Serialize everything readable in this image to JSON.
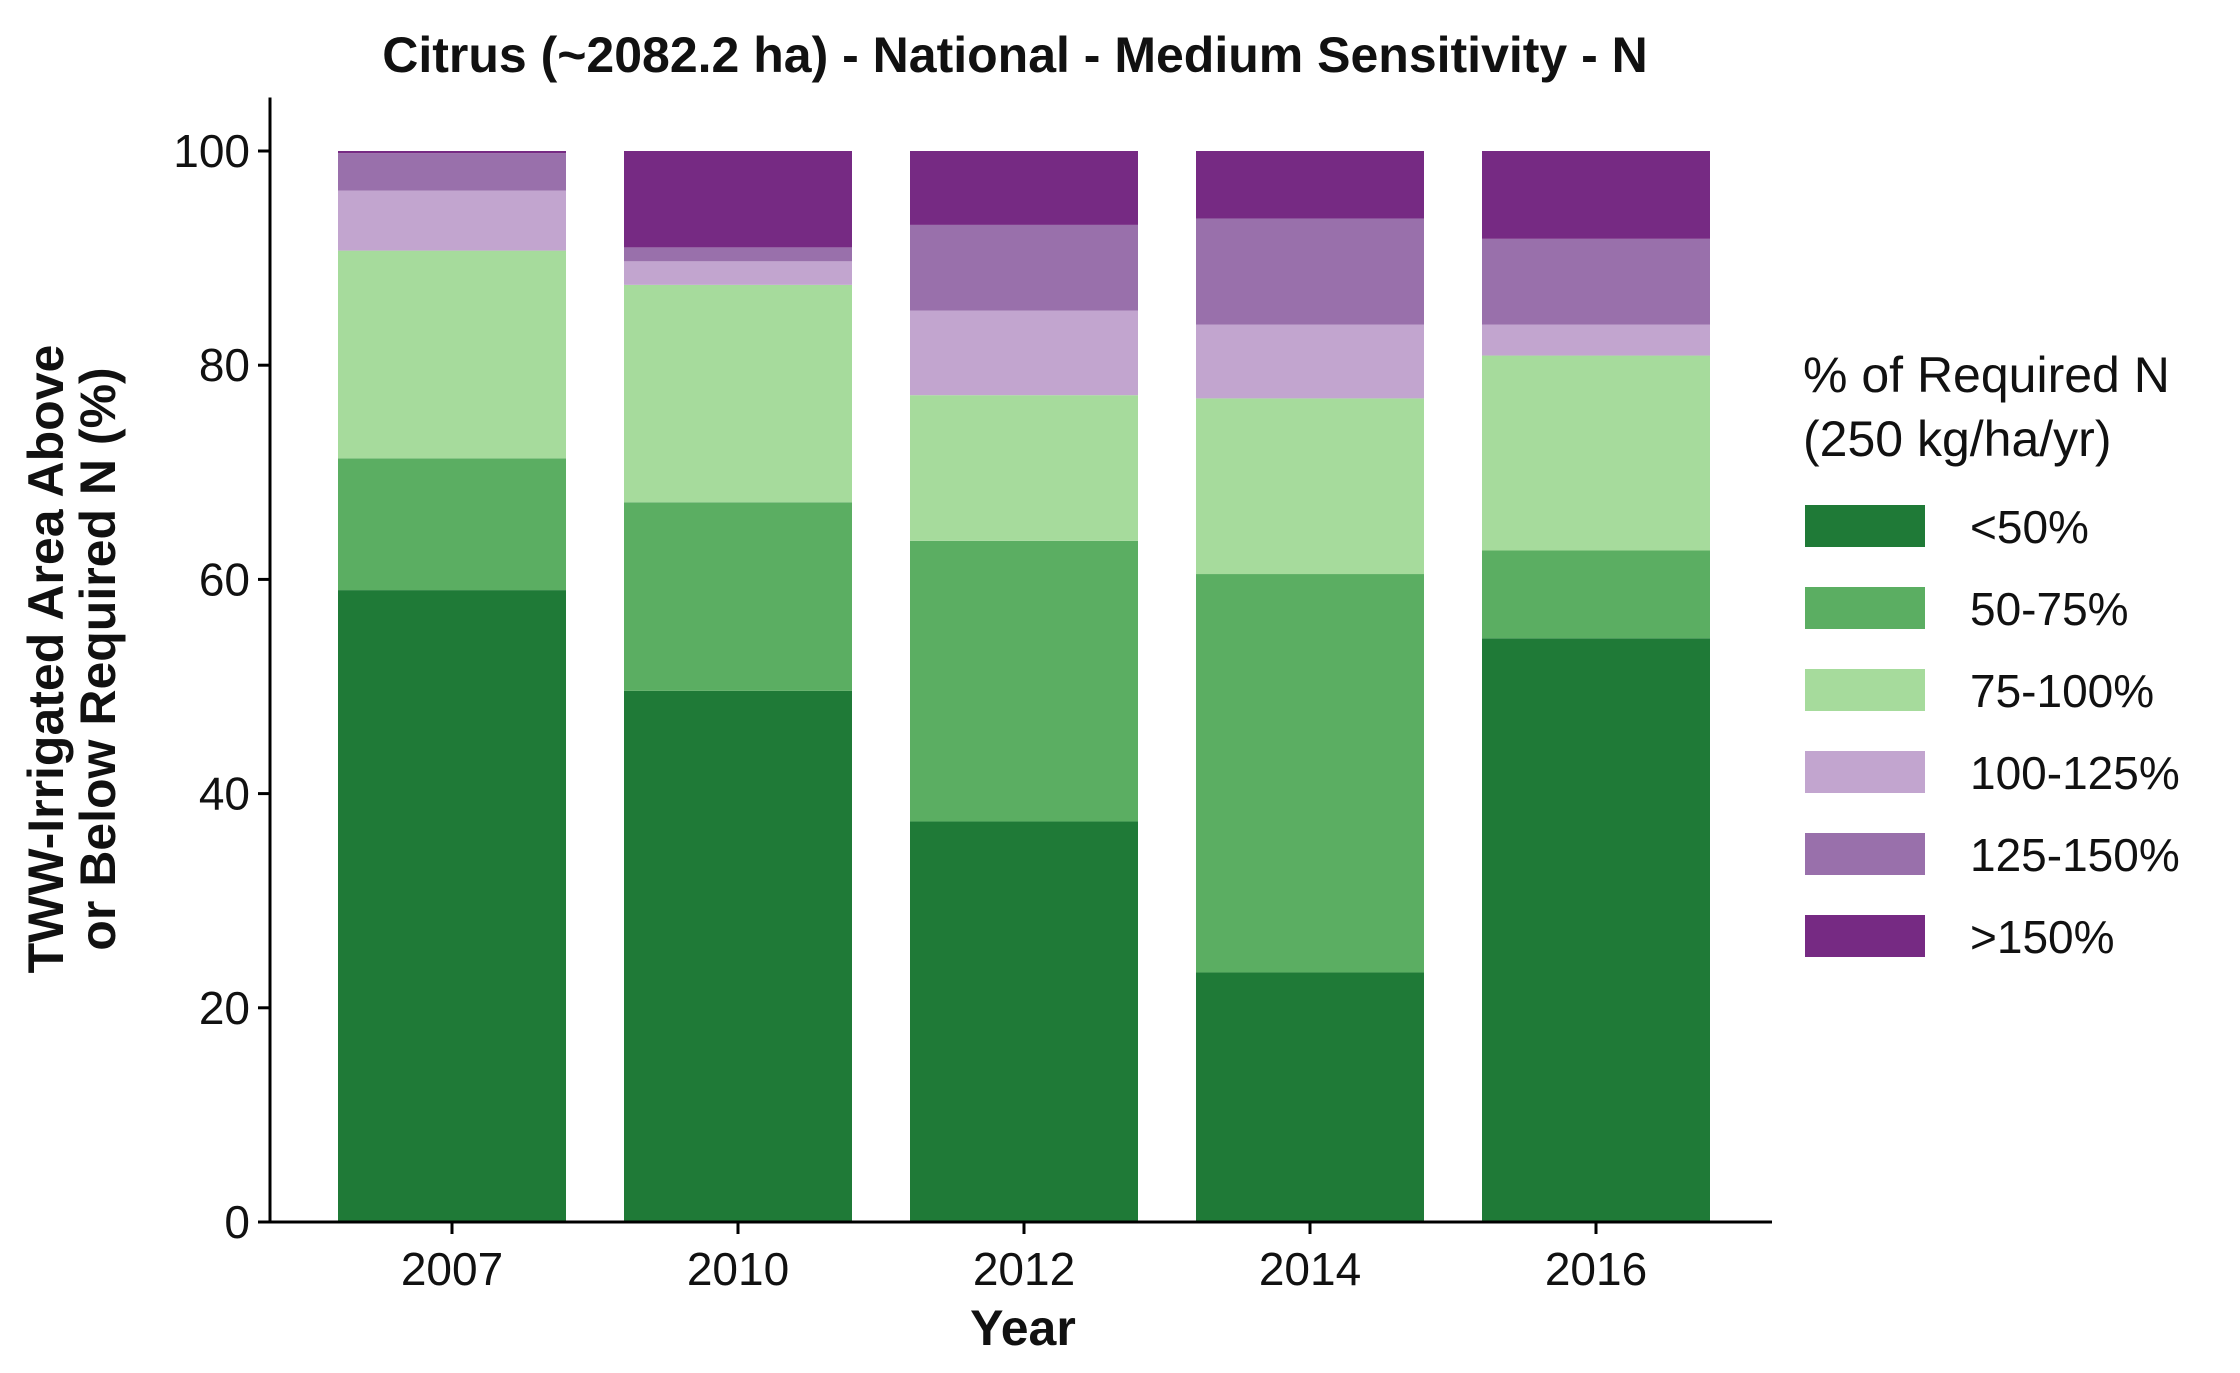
{
  "chart_data": {
    "type": "bar",
    "stacked": true,
    "title": "Citrus (~2082.2 ha) - National - Medium Sensitivity - N",
    "xlabel": "Year",
    "ylabel": [
      "TWW-Irrigated Area Above",
      "or Below Required N (%)"
    ],
    "ylim": [
      0,
      105
    ],
    "yticks": [
      0,
      20,
      40,
      60,
      80,
      100
    ],
    "grid": false,
    "categories": [
      "2007",
      "2010",
      "2012",
      "2014",
      "2016"
    ],
    "legend": {
      "title": [
        "% of Required N",
        "(250 kg/ha/yr)"
      ],
      "placement": "right"
    },
    "series": [
      {
        "name": "<50%",
        "color": "#1f7a37",
        "values": [
          59.0,
          49.6,
          37.4,
          23.3,
          54.5
        ]
      },
      {
        "name": "50-75%",
        "color": "#5bae62",
        "values": [
          12.3,
          17.6,
          26.2,
          37.2,
          8.2
        ]
      },
      {
        "name": "75-100%",
        "color": "#a6db9c",
        "values": [
          19.4,
          20.3,
          13.6,
          16.4,
          18.2
        ]
      },
      {
        "name": "100-125%",
        "color": "#c2a5cf",
        "values": [
          5.6,
          2.2,
          7.9,
          6.9,
          2.9
        ]
      },
      {
        "name": "125-150%",
        "color": "#9970ab",
        "values": [
          3.5,
          1.3,
          8.0,
          9.9,
          8.0
        ]
      },
      {
        "name": ">150%",
        "color": "#762a83",
        "values": [
          0.2,
          9.0,
          6.9,
          6.3,
          8.2
        ]
      }
    ]
  }
}
